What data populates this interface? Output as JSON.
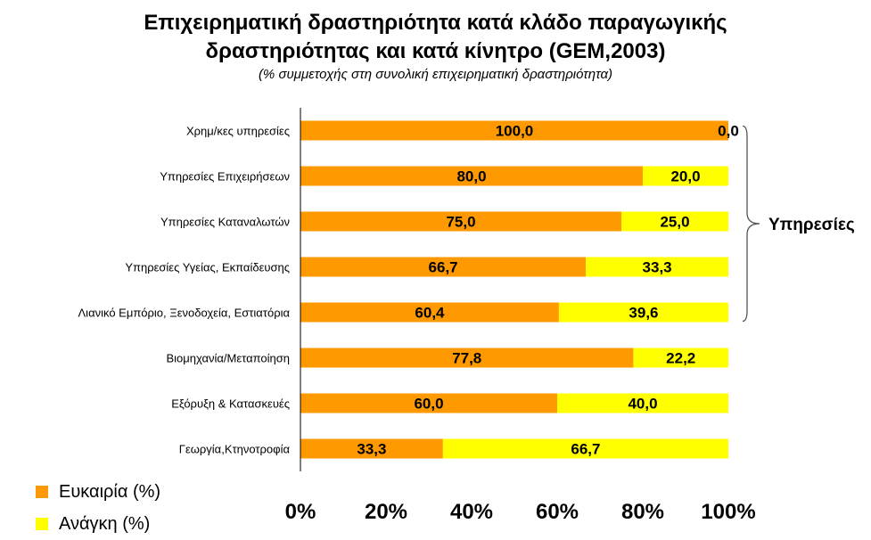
{
  "chart_data": {
    "type": "bar",
    "orientation": "horizontal",
    "stacked": "percent",
    "title": [
      "Επιχειρηματική δραστηριότητα κατά κλάδο παραγωγικής",
      "δραστηριότητας και κατά κίνητρο (GEM,2003)"
    ],
    "subtitle": "(% συμμετοχής στη συνολική επιχειρηματική δραστηριότητα)",
    "categories": [
      "Χρημ/κες υπηρεσίες",
      "Υπηρεσίες Επιχειρήσεων",
      "Υπηρεσίες Καταναλωτών",
      "Υπηρεσίες Υγείας, Εκπαίδευσης",
      "Λιανικό Εμπόριο, Ξενοδοχεία, Εστιατόρια",
      "Βιομηχανία/Μεταποίηση",
      "Εξόρυξη & Κατασκευές",
      "Γεωργία,Κτηνοτροφία"
    ],
    "series": [
      {
        "name": "Ευκαιρία (%)",
        "color": "#FF9900",
        "values": [
          100.0,
          80.0,
          75.0,
          66.7,
          60.4,
          77.8,
          60.0,
          33.3
        ],
        "labels": [
          "100,0",
          "80,0",
          "75,0",
          "66,7",
          "60,4",
          "77,8",
          "60,0",
          "33,3"
        ]
      },
      {
        "name": "Ανάγκη (%)",
        "color": "#FFFF00",
        "values": [
          0.0,
          20.0,
          25.0,
          33.3,
          39.6,
          22.2,
          40.0,
          66.7
        ],
        "labels": [
          "0,0",
          "20,0",
          "25,0",
          "33,3",
          "39,6",
          "22,2",
          "40,0",
          "66,7"
        ]
      }
    ],
    "xlim": [
      0,
      100
    ],
    "xticks": [
      "0%",
      "20%",
      "40%",
      "60%",
      "80%",
      "100%"
    ],
    "grid": false,
    "legend_position": "bottom-left",
    "annotation": {
      "text": "Υπηρεσίες",
      "type": "brace",
      "spans_categories": [
        0,
        4
      ]
    }
  }
}
